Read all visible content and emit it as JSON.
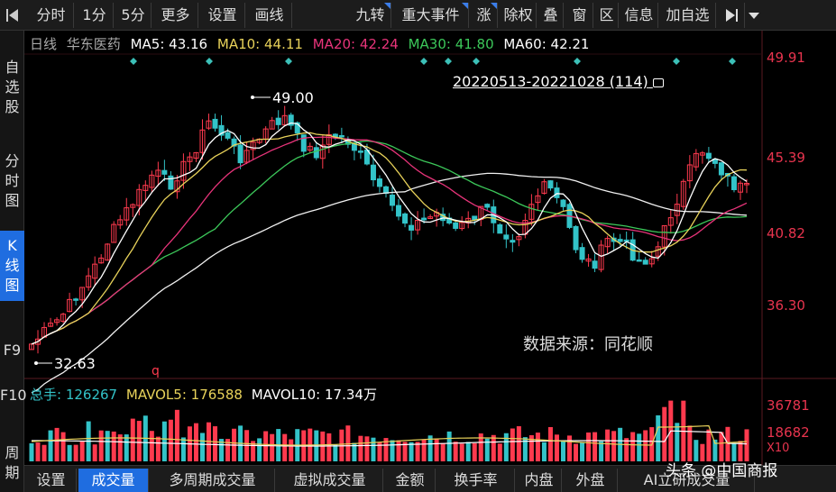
{
  "toolbar": {
    "items": [
      "分时",
      "1分",
      "5分",
      "更多",
      "设置",
      "画线",
      "九转",
      "重大事件",
      "涨",
      "除权",
      "叠",
      "窗",
      "区",
      "信息",
      "加自选"
    ],
    "nav_icon": "skip-back-icon",
    "more_icon": "skip-forward-icon",
    "dropdown_icon": "chevron-down-icon"
  },
  "sidebar": {
    "items": [
      {
        "label": "自选股",
        "chars": [
          "自",
          "选",
          "股"
        ]
      },
      {
        "label": "分时图",
        "chars": [
          "分",
          "时",
          "图"
        ]
      },
      {
        "label": "K线图",
        "chars": [
          "K",
          "线",
          "图"
        ]
      },
      {
        "label": "F9",
        "chars": [
          "F9"
        ]
      },
      {
        "label": "F10",
        "chars": [
          "F10"
        ]
      },
      {
        "label": "周期",
        "chars": [
          "周",
          "期"
        ]
      }
    ]
  },
  "legend": {
    "period": "日线",
    "stock": "华东医药",
    "ma5": "MA5: 43.16",
    "ma10": "MA10: 44.11",
    "ma20": "MA20: 42.24",
    "ma30": "MA30: 41.80",
    "ma60": "MA60: 42.21"
  },
  "range_label": "20220513-20221028 (114)",
  "lock_icon": "lock-icon",
  "high_label": "49.00",
  "low_label": "32.63",
  "marker_label": "q",
  "source": "数据来源：同花顺",
  "price_axis": [
    "49.91",
    "45.39",
    "40.82",
    "36.30"
  ],
  "vol_legend": {
    "total": "总手: 126267",
    "mavol5": "MAVOL5: 176588",
    "mavol10": "MAVOL10: 17.34万"
  },
  "vol_axis": [
    "36781",
    "18682",
    "X10"
  ],
  "bottom_tabs": [
    "设置",
    "成交量",
    "多周期成交量",
    "虚拟成交量",
    "金额",
    "换手率",
    "内盘",
    "外盘",
    "AI立研成交量"
  ],
  "watermark": "头条 @中国商报",
  "colors": {
    "up": "#ff3a4e",
    "down": "#33c3c8",
    "ma5": "#ffffff",
    "ma10": "#e8d25a",
    "ma20": "#e8347a",
    "ma30": "#3cc85a",
    "ma60": "#f0f0f0",
    "active": "#1f6de0"
  }
}
